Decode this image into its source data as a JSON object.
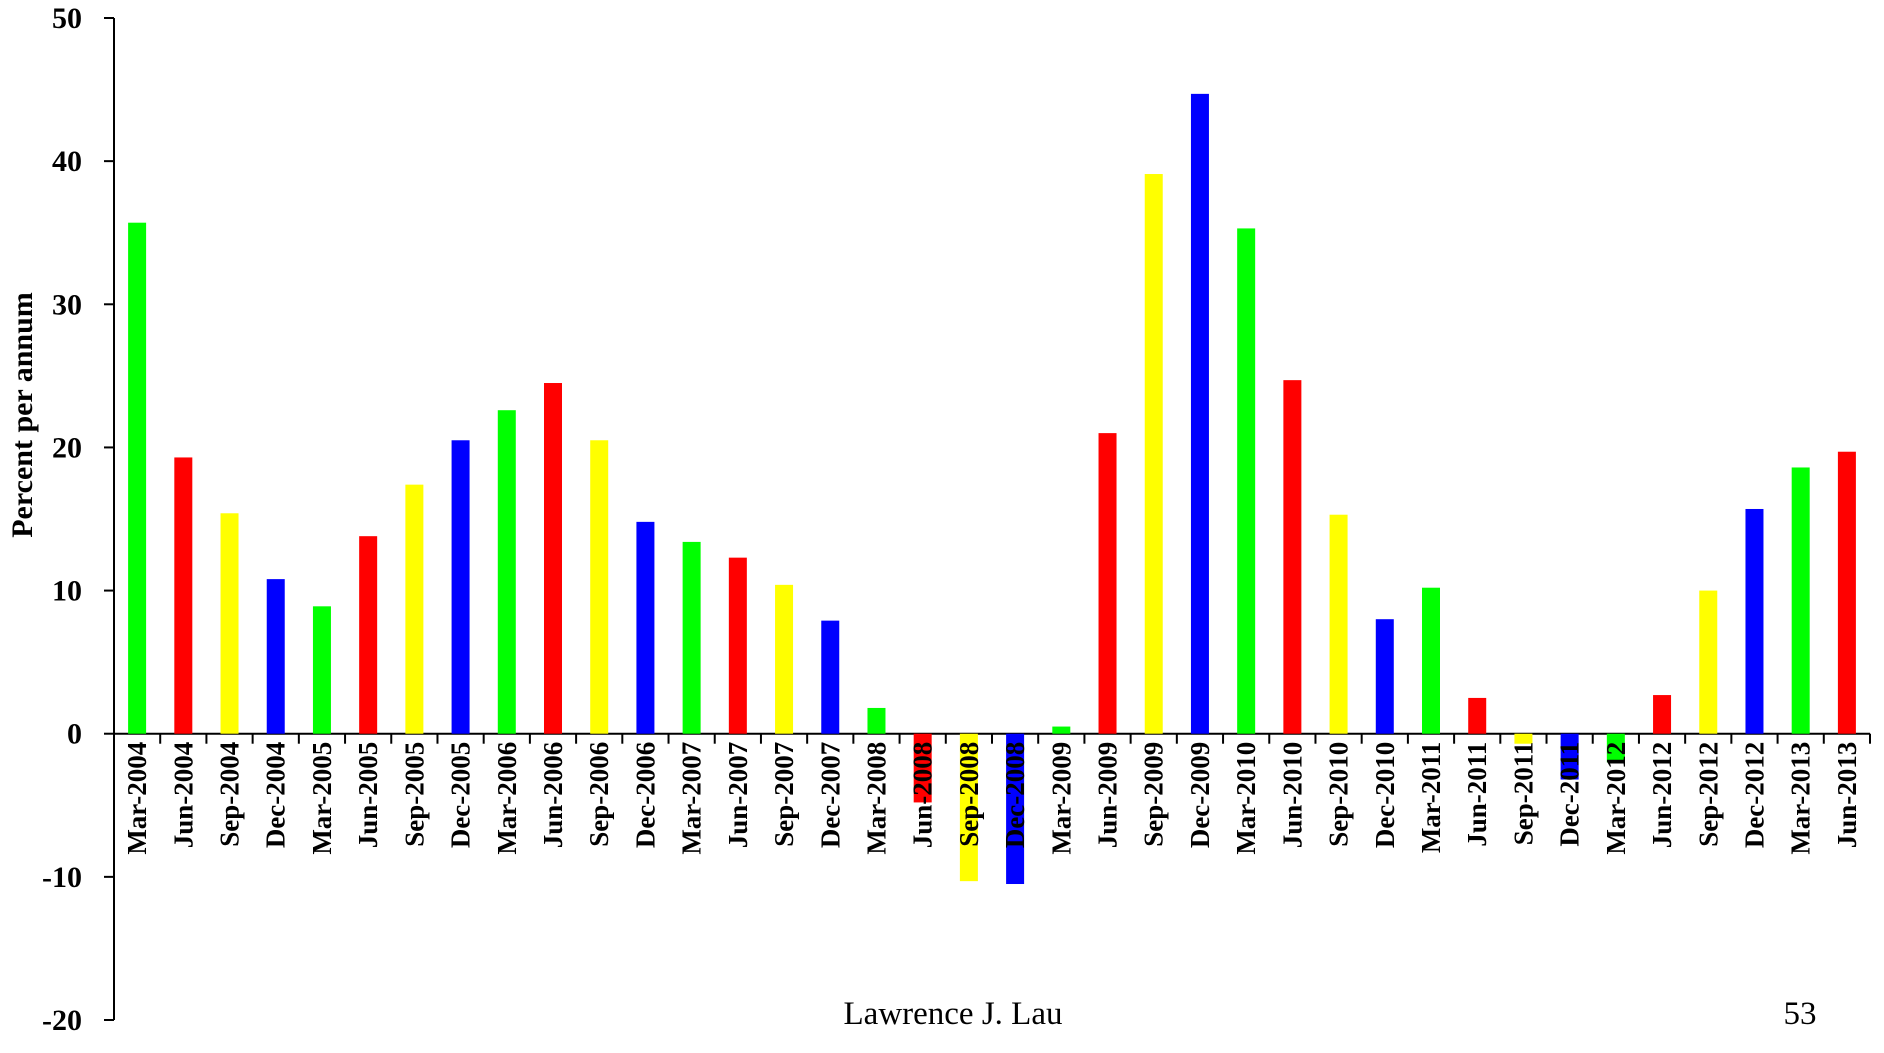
{
  "chart_data": {
    "type": "bar",
    "title": "",
    "xlabel": "",
    "ylabel": "Percent per annum",
    "ylim": [
      -20,
      50
    ],
    "yticks": [
      -20,
      -10,
      0,
      10,
      20,
      30,
      40,
      50
    ],
    "grid": false,
    "categories": [
      "Mar-2004",
      "Jun-2004",
      "Sep-2004",
      "Dec-2004",
      "Mar-2005",
      "Jun-2005",
      "Sep-2005",
      "Dec-2005",
      "Mar-2006",
      "Jun-2006",
      "Sep-2006",
      "Dec-2006",
      "Mar-2007",
      "Jun-2007",
      "Sep-2007",
      "Dec-2007",
      "Mar-2008",
      "Jun-2008",
      "Sep-2008",
      "Dec-2008",
      "Mar-2009",
      "Jun-2009",
      "Sep-2009",
      "Dec-2009",
      "Mar-2010",
      "Jun-2010",
      "Sep-2010",
      "Dec-2010",
      "Mar-2011",
      "Jun-2011",
      "Sep-2011",
      "Dec-2011",
      "Mar-2012",
      "Jun-2012",
      "Sep-2012",
      "Dec-2012",
      "Mar-2013",
      "Jun-2013"
    ],
    "values": [
      35.7,
      19.3,
      15.4,
      10.8,
      8.9,
      13.8,
      17.4,
      20.5,
      22.6,
      24.5,
      20.5,
      14.8,
      13.4,
      12.3,
      10.4,
      7.9,
      1.8,
      -4.8,
      -10.3,
      -10.5,
      0.5,
      21.0,
      39.1,
      44.7,
      35.3,
      24.7,
      15.3,
      8.0,
      10.2,
      2.5,
      -0.7,
      -3.2,
      -2.0,
      2.7,
      10.0,
      15.7,
      18.6,
      19.7
    ],
    "colors": {
      "Mar": "#00ff00",
      "Jun": "#ff0000",
      "Sep": "#ffff00",
      "Dec": "#0000ff"
    }
  },
  "footer": {
    "author": "Lawrence J. Lau",
    "page_number": "53"
  }
}
